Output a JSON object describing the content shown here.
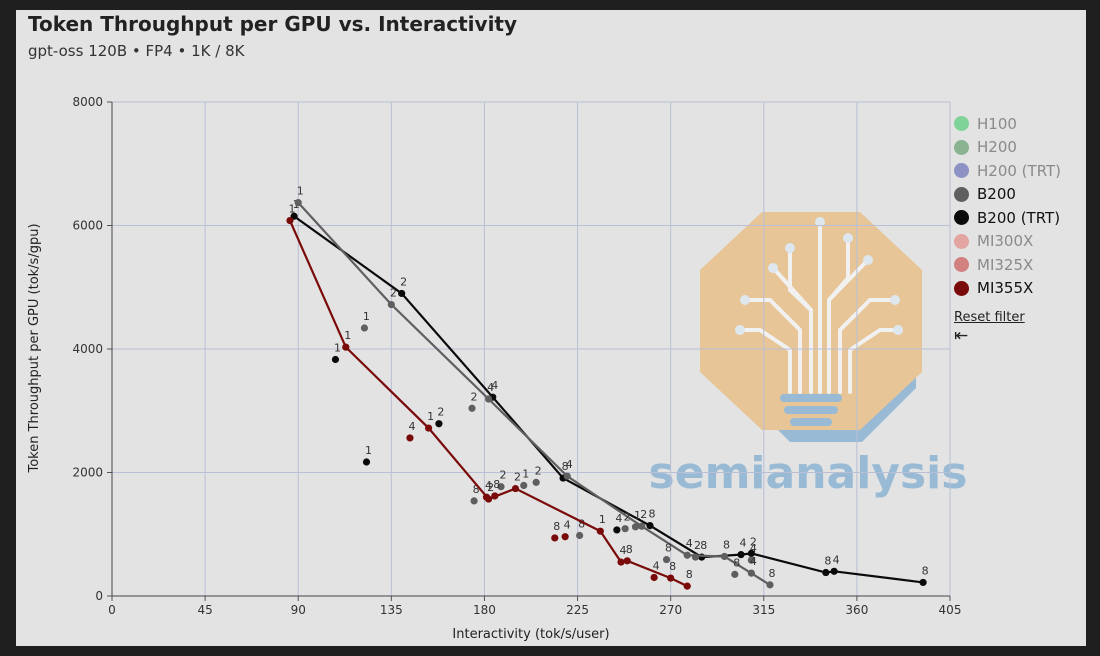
{
  "colors": {
    "H100": "#6fd08b",
    "H200": "#7aaa82",
    "H200 (TRT)": "#7c84bd",
    "B200": "#5f5f5f",
    "B200 (TRT)": "#0a0a0a",
    "MI300X": "#e39a95",
    "MI325X": "#cf6f6f",
    "MI355X": "#7a0a0a"
  },
  "chart_data": {
    "type": "scatter",
    "title": "Token Throughput per GPU vs. Interactivity",
    "subtitle": "gpt-oss 120B • FP4 • 1K / 8K",
    "xlabel": "Interactivity (tok/s/user)",
    "ylabel": "Token Throughput per GPU (tok/s/gpu)",
    "xlim": [
      0,
      405
    ],
    "ylim": [
      0,
      8000
    ],
    "xticks": [
      "0",
      "45",
      "90",
      "135",
      "180",
      "225",
      "270",
      "315",
      "360",
      "405"
    ],
    "xtick_values": [
      0,
      45,
      90,
      135,
      180,
      225,
      270,
      315,
      360,
      405
    ],
    "yticks": [
      "0",
      "2000",
      "4000",
      "6000",
      "8000"
    ],
    "ytick_values": [
      0,
      2000,
      4000,
      6000,
      8000
    ],
    "grid": true,
    "series": [
      {
        "name": "B200 (TRT)",
        "scatter_points": [
          {
            "x": 108,
            "y": 3830,
            "label": "1"
          },
          {
            "x": 123,
            "y": 2170,
            "label": "1"
          },
          {
            "x": 158,
            "y": 2790,
            "label": "2"
          },
          {
            "x": 244,
            "y": 1070,
            "label": "4"
          }
        ],
        "frontier": [
          {
            "x": 88,
            "y": 6150,
            "label": "1"
          },
          {
            "x": 140,
            "y": 4900,
            "label": "2"
          },
          {
            "x": 184,
            "y": 3220,
            "label": "4"
          },
          {
            "x": 218,
            "y": 1910,
            "label": "8"
          },
          {
            "x": 260,
            "y": 1140,
            "label": "8"
          },
          {
            "x": 285,
            "y": 630,
            "label": "8"
          },
          {
            "x": 304,
            "y": 670,
            "label": "4"
          },
          {
            "x": 309,
            "y": 690,
            "label": "2"
          },
          {
            "x": 345,
            "y": 380,
            "label": "8"
          },
          {
            "x": 349,
            "y": 400,
            "label": "4"
          },
          {
            "x": 392,
            "y": 220,
            "label": "8"
          }
        ]
      },
      {
        "name": "B200",
        "scatter_points": [
          {
            "x": 122,
            "y": 4340,
            "label": "1"
          },
          {
            "x": 174,
            "y": 3040,
            "label": "2"
          },
          {
            "x": 175,
            "y": 1540,
            "label": "8"
          },
          {
            "x": 188,
            "y": 1770,
            "label": "2"
          },
          {
            "x": 199,
            "y": 1790,
            "label": "1"
          },
          {
            "x": 205,
            "y": 1840,
            "label": "2"
          },
          {
            "x": 226,
            "y": 980,
            "label": "8"
          },
          {
            "x": 248,
            "y": 1090,
            "label": "2"
          },
          {
            "x": 253,
            "y": 1120,
            "label": "1"
          },
          {
            "x": 268,
            "y": 590,
            "label": "8"
          },
          {
            "x": 282,
            "y": 630,
            "label": "2"
          },
          {
            "x": 301,
            "y": 350,
            "label": "8"
          },
          {
            "x": 309,
            "y": 580,
            "label": "4"
          },
          {
            "x": 309,
            "y": 370,
            "label": "4"
          }
        ],
        "frontier": [
          {
            "x": 90,
            "y": 6370,
            "label": "1"
          },
          {
            "x": 135,
            "y": 4720,
            "label": "2"
          },
          {
            "x": 182,
            "y": 3190,
            "label": "4"
          },
          {
            "x": 220,
            "y": 1940,
            "label": "4"
          },
          {
            "x": 256,
            "y": 1130,
            "label": "2"
          },
          {
            "x": 278,
            "y": 660,
            "label": "4"
          },
          {
            "x": 296,
            "y": 640,
            "label": "8"
          },
          {
            "x": 318,
            "y": 180,
            "label": "8"
          }
        ]
      },
      {
        "name": "MI355X",
        "scatter_points": [
          {
            "x": 144,
            "y": 2560,
            "label": "4"
          },
          {
            "x": 181,
            "y": 1600,
            "label": "4"
          },
          {
            "x": 185,
            "y": 1620,
            "label": "8"
          },
          {
            "x": 214,
            "y": 940,
            "label": "8"
          },
          {
            "x": 219,
            "y": 960,
            "label": "4"
          },
          {
            "x": 262,
            "y": 300,
            "label": "4"
          }
        ],
        "frontier": [
          {
            "x": 86,
            "y": 6080,
            "label": "1"
          },
          {
            "x": 113,
            "y": 4030,
            "label": "1"
          },
          {
            "x": 153,
            "y": 2720,
            "label": "1"
          },
          {
            "x": 182,
            "y": 1570,
            "label": "2"
          },
          {
            "x": 195,
            "y": 1740,
            "label": "2"
          },
          {
            "x": 236,
            "y": 1050,
            "label": "1"
          },
          {
            "x": 246,
            "y": 550,
            "label": "4"
          },
          {
            "x": 249,
            "y": 570,
            "label": "8"
          },
          {
            "x": 270,
            "y": 290,
            "label": "8"
          },
          {
            "x": 278,
            "y": 160,
            "label": "8"
          }
        ]
      }
    ]
  },
  "legend": {
    "items": [
      {
        "label": "H100",
        "active": false
      },
      {
        "label": "H200",
        "active": false
      },
      {
        "label": "H200 (TRT)",
        "active": false
      },
      {
        "label": "B200",
        "active": true
      },
      {
        "label": "B200 (TRT)",
        "active": true
      },
      {
        "label": "MI300X",
        "active": false
      },
      {
        "label": "MI325X",
        "active": false
      },
      {
        "label": "MI355X",
        "active": true
      }
    ],
    "reset_label": "Reset filter",
    "collapse_glyph": "⇤"
  },
  "watermark": {
    "wordmark": "semianalysis"
  }
}
